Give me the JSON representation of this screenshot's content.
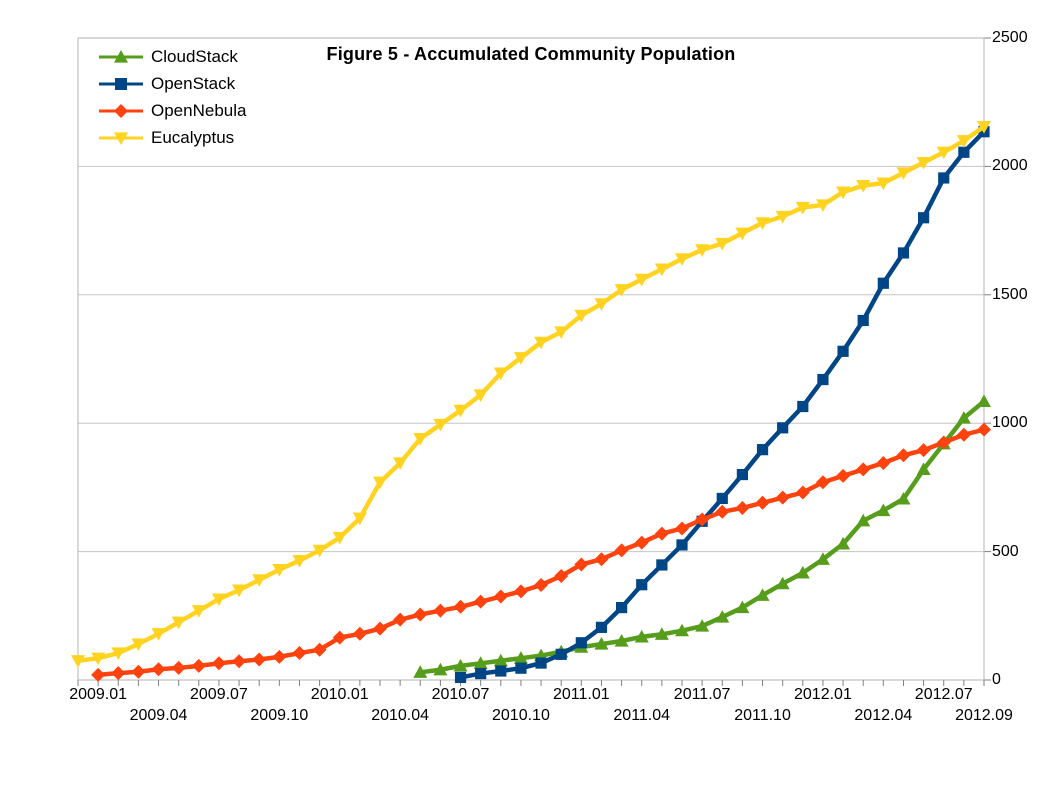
{
  "chart_data": {
    "type": "line",
    "title": "Figure 5 - Accumulated Community Population",
    "xlabel": "",
    "ylabel": "",
    "ylim": [
      0,
      2500
    ],
    "y_ticks": [
      0,
      500,
      1000,
      1500,
      2000,
      2500
    ],
    "grid": "horizontal-only",
    "legend_position": "top-left-inside",
    "axis_side": "right",
    "colors": {
      "grid": "#c6c6c6",
      "plot_border": "#b3b3b3",
      "tick": "#808080",
      "text": "#000000"
    },
    "months": [
      "2008.12",
      "2009.01",
      "2009.02",
      "2009.03",
      "2009.04",
      "2009.05",
      "2009.06",
      "2009.07",
      "2009.08",
      "2009.09",
      "2009.10",
      "2009.11",
      "2009.12",
      "2010.01",
      "2010.02",
      "2010.03",
      "2010.04",
      "2010.05",
      "2010.06",
      "2010.07",
      "2010.08",
      "2010.09",
      "2010.10",
      "2010.11",
      "2010.12",
      "2011.01",
      "2011.02",
      "2011.03",
      "2011.04",
      "2011.05",
      "2011.06",
      "2011.07",
      "2011.08",
      "2011.09",
      "2011.10",
      "2011.11",
      "2011.12",
      "2012.01",
      "2012.02",
      "2012.03",
      "2012.04",
      "2012.05",
      "2012.06",
      "2012.07",
      "2012.08",
      "2012.09"
    ],
    "x_ticks_row1": [
      "2009.01",
      "2009.07",
      "2010.01",
      "2010.07",
      "2011.01",
      "2011.07",
      "2012.01",
      "2012.07"
    ],
    "x_ticks_row2": [
      "2009.04",
      "2009.10",
      "2010.04",
      "2010.10",
      "2011.04",
      "2011.10",
      "2012.04",
      "2012.09"
    ],
    "series": [
      {
        "name": "CloudStack",
        "color": "#579D1C",
        "marker": "triangle-up",
        "values": [
          null,
          null,
          null,
          null,
          null,
          null,
          null,
          null,
          null,
          null,
          null,
          null,
          null,
          null,
          null,
          null,
          null,
          30,
          40,
          55,
          65,
          75,
          85,
          95,
          110,
          128,
          140,
          152,
          168,
          178,
          192,
          210,
          245,
          282,
          330,
          375,
          417,
          470,
          530,
          620,
          660,
          705,
          820,
          920,
          1020,
          1085
        ]
      },
      {
        "name": "OpenStack",
        "color": "#004586",
        "marker": "square",
        "values": [
          null,
          null,
          null,
          null,
          null,
          null,
          null,
          null,
          null,
          null,
          null,
          null,
          null,
          null,
          null,
          null,
          null,
          null,
          null,
          10,
          25,
          35,
          46,
          66,
          100,
          145,
          205,
          282,
          371,
          448,
          526,
          618,
          707,
          800,
          897,
          982,
          1065,
          1170,
          1280,
          1400,
          1545,
          1663,
          1800,
          1955,
          2055,
          2135
        ]
      },
      {
        "name": "OpenNebula",
        "color": "#FF420E",
        "marker": "diamond",
        "values": [
          null,
          20,
          27,
          32,
          42,
          47,
          55,
          65,
          73,
          80,
          90,
          105,
          118,
          165,
          180,
          200,
          235,
          255,
          270,
          285,
          305,
          325,
          345,
          370,
          405,
          450,
          470,
          505,
          535,
          570,
          590,
          625,
          655,
          670,
          690,
          710,
          730,
          770,
          795,
          820,
          845,
          875,
          895,
          925,
          955,
          975
        ]
      },
      {
        "name": "Eucalyptus",
        "color": "#FFD320",
        "marker": "triangle-down",
        "values": [
          75,
          85,
          105,
          140,
          180,
          225,
          270,
          315,
          350,
          390,
          430,
          465,
          505,
          555,
          630,
          770,
          845,
          940,
          995,
          1050,
          1110,
          1195,
          1255,
          1315,
          1355,
          1420,
          1465,
          1520,
          1560,
          1600,
          1640,
          1675,
          1700,
          1740,
          1780,
          1805,
          1840,
          1850,
          1900,
          1925,
          1935,
          1975,
          2015,
          2055,
          2100,
          2155
        ]
      }
    ]
  }
}
